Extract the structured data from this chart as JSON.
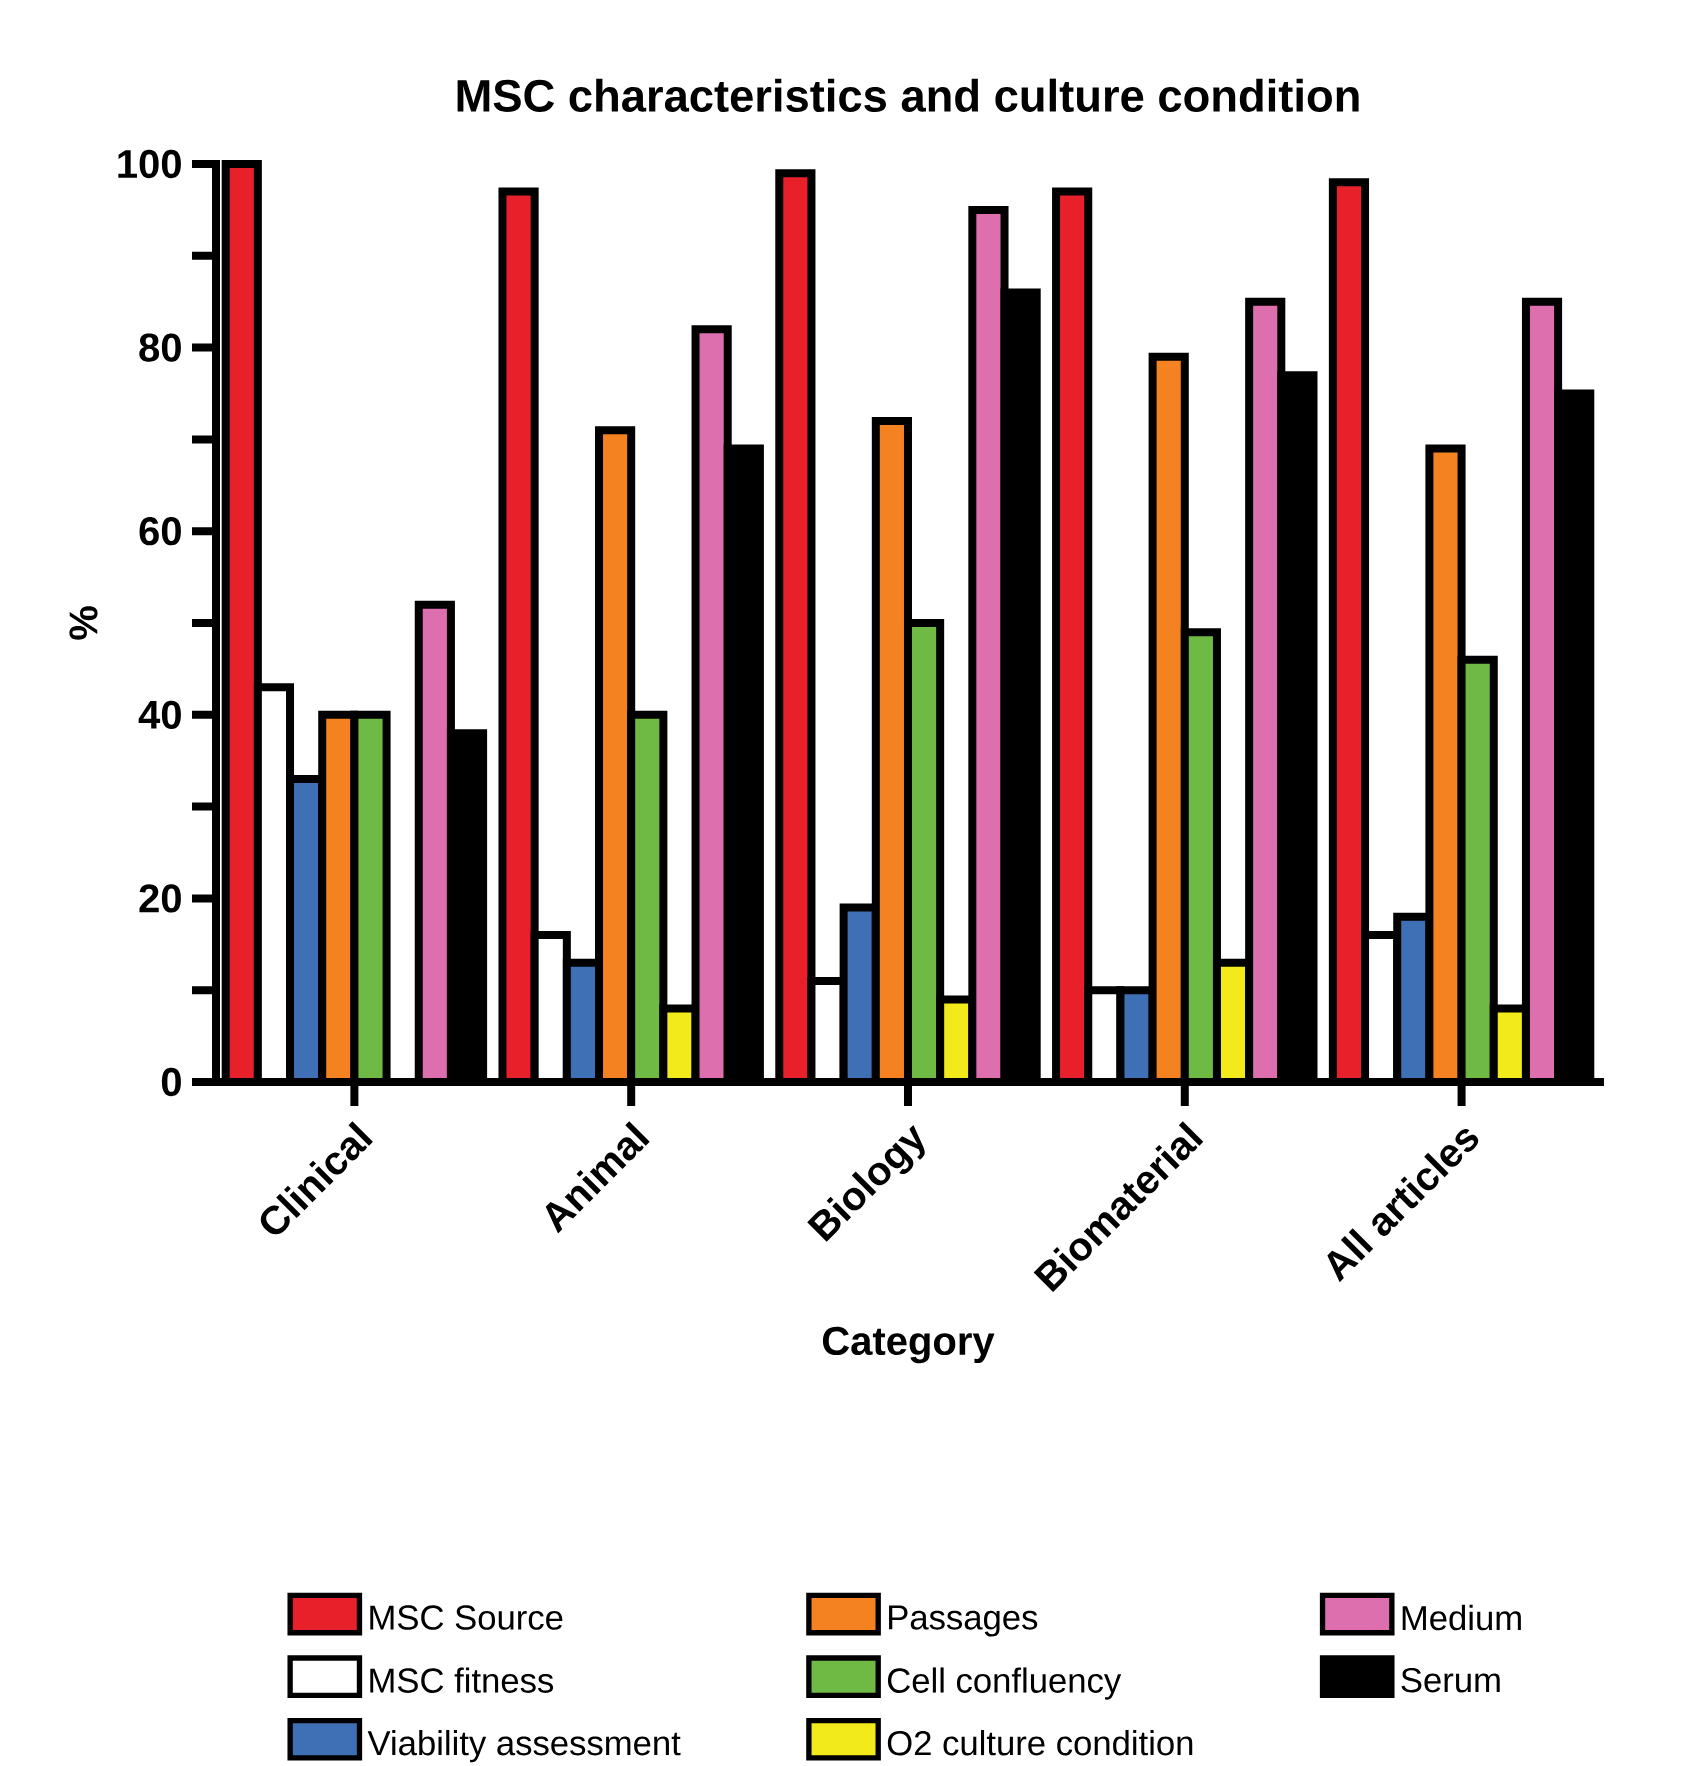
{
  "chart_data": {
    "type": "bar",
    "title": "MSC characteristics and culture condition",
    "xlabel": "Category",
    "ylabel": "%",
    "categories": [
      "Clinical",
      "Animal",
      "Biology",
      "Biomaterial",
      "All articles"
    ],
    "ylim": [
      0,
      100
    ],
    "yticks": [
      0,
      {
        "value": 10,
        "label": null
      },
      20,
      {
        "value": 30,
        "label": null
      },
      40,
      {
        "value": 50,
        "label": null
      },
      60,
      {
        "value": 70,
        "label": null
      },
      80,
      {
        "value": 90,
        "label": null
      },
      100
    ],
    "legend": "bottom",
    "series": [
      {
        "name": "MSC Source",
        "color": "#e8202a",
        "values": [
          100,
          97,
          99,
          97,
          98
        ]
      },
      {
        "name": "MSC fitness",
        "color": "#ffffff",
        "values": [
          43,
          16,
          11,
          10,
          16
        ]
      },
      {
        "name": "Viability assessment",
        "color": "#3f6fb5",
        "values": [
          33,
          13,
          19,
          10,
          18
        ]
      },
      {
        "name": "Passages",
        "color": "#f58220",
        "values": [
          40,
          71,
          72,
          79,
          69
        ]
      },
      {
        "name": "Cell confluency",
        "color": "#6fba44",
        "values": [
          40,
          40,
          50,
          49,
          46
        ]
      },
      {
        "name": "O2 culture condition",
        "color": "#f2ea1a",
        "values": [
          null,
          8,
          9,
          13,
          8
        ]
      },
      {
        "name": "Medium",
        "color": "#dd6fae",
        "values": [
          52,
          82,
          95,
          85,
          85
        ]
      },
      {
        "name": "Serum",
        "color": "#000000",
        "values": [
          38,
          69,
          86,
          77,
          75
        ]
      }
    ]
  }
}
